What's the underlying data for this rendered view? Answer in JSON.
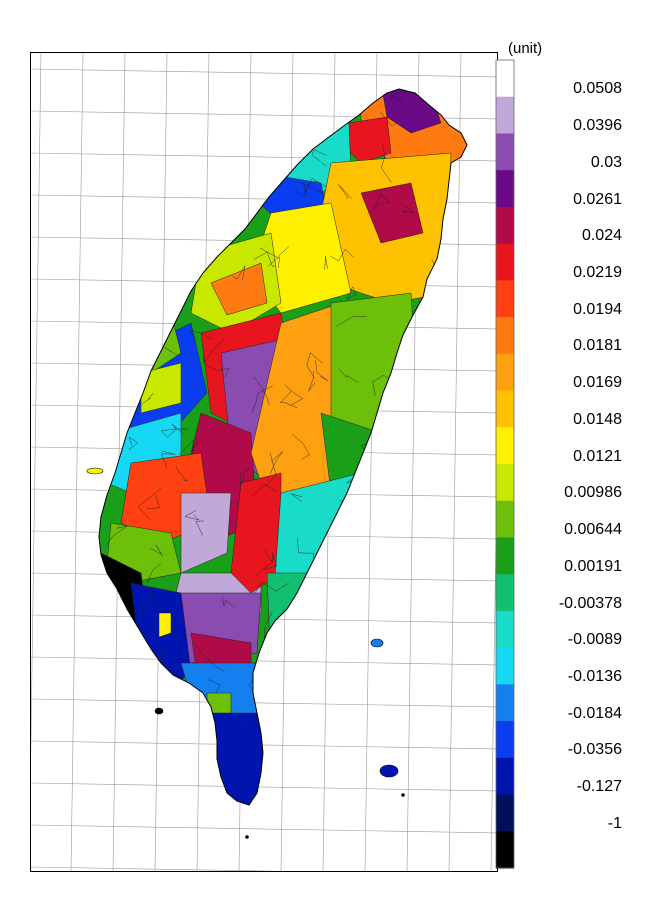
{
  "legend": {
    "unit": "(unit)",
    "breaks": [
      "0.0508",
      "0.0396",
      "0.03",
      "0.0261",
      "0.024",
      "0.0219",
      "0.0194",
      "0.0181",
      "0.0169",
      "0.0148",
      "0.0121",
      "0.00986",
      "0.00644",
      "0.00191",
      "-0.00378",
      "-0.0089",
      "-0.0136",
      "-0.0184",
      "-0.0356",
      "-0.127",
      "-1"
    ],
    "colors": [
      "#ffffff",
      "#c0a8d8",
      "#8a4cb0",
      "#6a0a88",
      "#b00a48",
      "#e8141e",
      "#ff4010",
      "#ff7a10",
      "#ffa010",
      "#ffc200",
      "#fff000",
      "#c8e800",
      "#6cc00a",
      "#1aa018",
      "#10c070",
      "#18dcc8",
      "#14d8f4",
      "#1480f0",
      "#0a3cf0",
      "#0014b0",
      "#00105a",
      "#000000"
    ]
  },
  "map": {
    "background": "#ffffff",
    "grid_color": "#9a9a9a",
    "island_stroke": "#000000"
  }
}
